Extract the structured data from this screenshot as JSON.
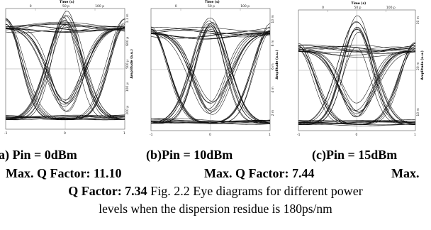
{
  "chart_data": [
    {
      "type": "line",
      "name": "eye-a",
      "xlabel": "Time (s)",
      "ylabel": "Amplitude (a.u.)",
      "top_ticks": [
        "0",
        "50 p",
        "100 p"
      ],
      "right_ticks": [
        "1.1 m",
        "600 µ",
        "500 µ",
        "100 µ",
        "200 µ"
      ],
      "bottom_ticks": [
        "-1",
        "",
        "0",
        "",
        "1"
      ],
      "high_level": 0.84,
      "low_level": 0.08,
      "eye_opening_fraction": 0.62
    },
    {
      "type": "line",
      "name": "eye-b",
      "xlabel": "Time (s)",
      "ylabel": "Amplitude (a.u.)",
      "top_ticks": [
        "0",
        "50 p",
        "100 p"
      ],
      "right_ticks": [
        "10 m",
        "8 m",
        "6 m",
        "4 m",
        "2 m"
      ],
      "bottom_ticks": [
        "-1",
        "",
        "0",
        "",
        "1"
      ],
      "high_level": 0.8,
      "low_level": 0.06,
      "eye_opening_fraction": 0.55
    },
    {
      "type": "line",
      "name": "eye-c",
      "xlabel": "Time (s)",
      "ylabel": "Amplitude (a.u.)",
      "top_ticks": [
        "0",
        "50 p",
        "100 p"
      ],
      "right_ticks": [
        "30 m",
        "20 m",
        "10 m"
      ],
      "bottom_ticks": [
        "-1",
        "",
        "0",
        "",
        "1"
      ],
      "high_level": 0.66,
      "low_level": 0.05,
      "eye_opening_fraction": 0.48
    }
  ],
  "caption": {
    "label_a": "(a) Pin = 0dBm",
    "label_b": "(b)Pin = 10dBm",
    "label_c": "(c)Pin = 15dBm",
    "q_a": "Max. Q Factor: 11.10",
    "q_b": "Max. Q Factor: 7.44",
    "q_c_start": "Max.",
    "q_c_end": "Q Factor: 7.34",
    "fig_text_1": " Fig. 2.2 Eye diagrams for different power",
    "fig_text_2": "levels when the dispersion residue is 180ps/nm"
  }
}
